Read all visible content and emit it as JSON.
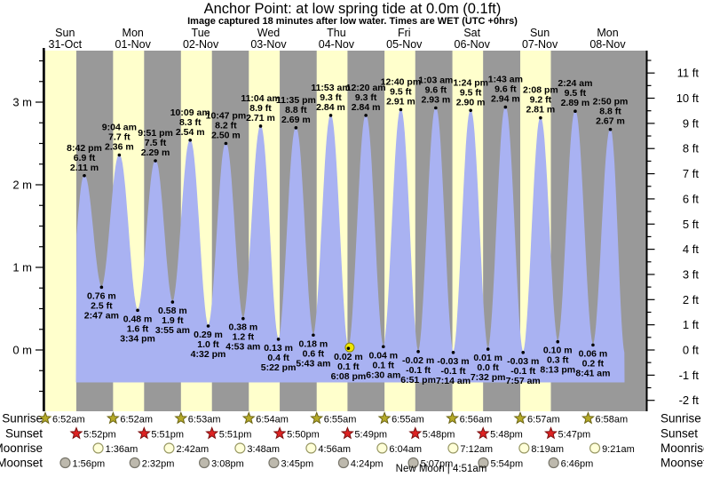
{
  "title": "Anchor Point: at low  spring tide at 0.0m (0.1ft)",
  "subtitle": "Image captured 18 minutes after low water. Times are WET (UTC +0hrs)",
  "colors": {
    "day_band": "#ffffcc",
    "night_band": "#999999",
    "tide_fill": "#a9b2f2",
    "day_label": "#d93a2b",
    "annotation_text": "#000000",
    "sunrise_star": "#b5aa28",
    "sunrise_star_outline": "#6b6414",
    "sunset_star": "#dd2222",
    "sunset_star_outline": "#7a1010",
    "moonrise_circle": "#ffffd8",
    "moonrise_circle_outline": "#999966",
    "moonset_circle": "#bdb9ad",
    "moonset_circle_outline": "#77756a",
    "current_marker": "#efe600",
    "current_marker_outline": "#8a8400"
  },
  "chart_data": {
    "type": "area",
    "title": "Anchor Point: at low  spring tide at 0.0m (0.1ft)",
    "subtitle": "Image captured 18 minutes after low water. Times are WET (UTC +0hrs)",
    "ylabel_left": "meters",
    "ylabel_right": "feet",
    "ylim_m": [
      -0.7,
      3.6
    ],
    "grid": false,
    "legend": false,
    "days": [
      {
        "weekday": "Sun",
        "date": "31-Oct"
      },
      {
        "weekday": "Mon",
        "date": "01-Nov"
      },
      {
        "weekday": "Tue",
        "date": "02-Nov"
      },
      {
        "weekday": "Wed",
        "date": "03-Nov"
      },
      {
        "weekday": "Thu",
        "date": "04-Nov"
      },
      {
        "weekday": "Fri",
        "date": "05-Nov"
      },
      {
        "weekday": "Sat",
        "date": "06-Nov"
      },
      {
        "weekday": "Sun",
        "date": "07-Nov"
      },
      {
        "weekday": "Mon",
        "date": "08-Nov"
      }
    ],
    "y_axis_left": {
      "ticks": [
        {
          "v": 0,
          "label": "0 m"
        },
        {
          "v": 1,
          "label": "1 m"
        },
        {
          "v": 2,
          "label": "2 m"
        },
        {
          "v": 3,
          "label": "3 m"
        }
      ]
    },
    "y_axis_right": {
      "ticks": [
        {
          "v": -2,
          "label": "-2 ft"
        },
        {
          "v": -1,
          "label": "-1 ft"
        },
        {
          "v": 0,
          "label": "0 ft"
        },
        {
          "v": 1,
          "label": "1 ft"
        },
        {
          "v": 2,
          "label": "2 ft"
        },
        {
          "v": 3,
          "label": "3 ft"
        },
        {
          "v": 4,
          "label": "4 ft"
        },
        {
          "v": 5,
          "label": "5 ft"
        },
        {
          "v": 6,
          "label": "6 ft"
        },
        {
          "v": 7,
          "label": "7 ft"
        },
        {
          "v": 8,
          "label": "8 ft"
        },
        {
          "v": 9,
          "label": "9 ft"
        },
        {
          "v": 10,
          "label": "10 ft"
        },
        {
          "v": 11,
          "label": "11 ft"
        }
      ]
    },
    "tide_events": [
      {
        "type": "high",
        "day": 0,
        "time": "8:42 pm",
        "ft": "6.9 ft",
        "m": "2.11 m"
      },
      {
        "type": "low",
        "day": 1,
        "time": "2:47 am",
        "ft": "2.5 ft",
        "m": "0.76 m"
      },
      {
        "type": "high",
        "day": 1,
        "time": "9:04 am",
        "ft": "7.7 ft",
        "m": "2.36 m"
      },
      {
        "type": "low",
        "day": 1,
        "time": "3:34 pm",
        "ft": "1.6 ft",
        "m": "0.48 m"
      },
      {
        "type": "high",
        "day": 1,
        "time": "9:51 pm",
        "ft": "7.5 ft",
        "m": "2.29 m"
      },
      {
        "type": "low",
        "day": 2,
        "time": "3:55 am",
        "ft": "1.9 ft",
        "m": "0.58 m"
      },
      {
        "type": "high",
        "day": 2,
        "time": "10:09 am",
        "ft": "8.3 ft",
        "m": "2.54 m"
      },
      {
        "type": "low",
        "day": 2,
        "time": "4:32 pm",
        "ft": "1.0 ft",
        "m": "0.29 m"
      },
      {
        "type": "high",
        "day": 2,
        "time": "10:47 pm",
        "ft": "8.2 ft",
        "m": "2.50 m"
      },
      {
        "type": "low",
        "day": 3,
        "time": "4:53 am",
        "ft": "1.2 ft",
        "m": "0.38 m"
      },
      {
        "type": "high",
        "day": 3,
        "time": "11:04 am",
        "ft": "8.9 ft",
        "m": "2.71 m"
      },
      {
        "type": "low",
        "day": 3,
        "time": "5:22 pm",
        "ft": "0.4 ft",
        "m": "0.13 m"
      },
      {
        "type": "high",
        "day": 3,
        "time": "11:35 pm",
        "ft": "8.8 ft",
        "m": "2.69 m"
      },
      {
        "type": "low",
        "day": 4,
        "time": "5:43 am",
        "ft": "0.6 ft",
        "m": "0.18 m"
      },
      {
        "type": "high",
        "day": 4,
        "time": "11:53 am",
        "ft": "9.3 ft",
        "m": "2.84 m"
      },
      {
        "type": "low",
        "day": 4,
        "time": "6:08 pm",
        "ft": "0.1 ft",
        "m": "0.02 m",
        "current": true
      },
      {
        "type": "high",
        "day": 5,
        "time": "12:20 am",
        "ft": "9.3 ft",
        "m": "2.84 m"
      },
      {
        "type": "low",
        "day": 5,
        "time": "6:30 am",
        "ft": "0.1 ft",
        "m": "0.04 m"
      },
      {
        "type": "high",
        "day": 5,
        "time": "12:40 pm",
        "ft": "9.5 ft",
        "m": "2.91 m"
      },
      {
        "type": "low",
        "day": 5,
        "time": "6:51 pm",
        "ft": "-0.1 ft",
        "m": "-0.02 m"
      },
      {
        "type": "high",
        "day": 6,
        "time": "1:03 am",
        "ft": "9.6 ft",
        "m": "2.93 m"
      },
      {
        "type": "low",
        "day": 6,
        "time": "7:14 am",
        "ft": "-0.1 ft",
        "m": "-0.03 m"
      },
      {
        "type": "high",
        "day": 6,
        "time": "1:24 pm",
        "ft": "9.5 ft",
        "m": "2.90 m"
      },
      {
        "type": "low",
        "day": 6,
        "time": "7:32 pm",
        "ft": "0.0 ft",
        "m": "0.01 m"
      },
      {
        "type": "high",
        "day": 7,
        "time": "1:43 am",
        "ft": "9.6 ft",
        "m": "2.94 m"
      },
      {
        "type": "low",
        "day": 7,
        "time": "7:57 am",
        "ft": "-0.1 ft",
        "m": "-0.03 m"
      },
      {
        "type": "high",
        "day": 7,
        "time": "2:08 pm",
        "ft": "9.2 ft",
        "m": "2.81 m"
      },
      {
        "type": "low",
        "day": 7,
        "time": "8:13 pm",
        "ft": "0.3 ft",
        "m": "0.10 m"
      },
      {
        "type": "high",
        "day": 8,
        "time": "2:24 am",
        "ft": "9.5 ft",
        "m": "2.89 m"
      },
      {
        "type": "low",
        "day": 8,
        "time": "8:41 am",
        "ft": "0.2 ft",
        "m": "0.06 m"
      },
      {
        "type": "high",
        "day": 8,
        "time": "2:50 pm",
        "ft": "8.8 ft",
        "m": "2.67 m"
      }
    ]
  },
  "astro": {
    "rows": [
      {
        "name": "Sunrise",
        "icon": "sunrise-star-icon",
        "entries": [
          {
            "day": 0,
            "time": "6:52am"
          },
          {
            "day": 1,
            "time": "6:52am"
          },
          {
            "day": 2,
            "time": "6:53am"
          },
          {
            "day": 3,
            "time": "6:54am"
          },
          {
            "day": 4,
            "time": "6:55am"
          },
          {
            "day": 5,
            "time": "6:55am"
          },
          {
            "day": 6,
            "time": "6:56am"
          },
          {
            "day": 7,
            "time": "6:57am"
          },
          {
            "day": 8,
            "time": "6:58am"
          }
        ]
      },
      {
        "name": "Sunset",
        "icon": "sunset-star-icon",
        "entries": [
          {
            "day": 0,
            "time": "5:52pm"
          },
          {
            "day": 1,
            "time": "5:51pm"
          },
          {
            "day": 2,
            "time": "5:51pm"
          },
          {
            "day": 3,
            "time": "5:50pm"
          },
          {
            "day": 4,
            "time": "5:49pm"
          },
          {
            "day": 5,
            "time": "5:48pm"
          },
          {
            "day": 6,
            "time": "5:48pm"
          },
          {
            "day": 7,
            "time": "5:47pm"
          }
        ]
      },
      {
        "name": "Moonrise",
        "icon": "moonrise-moon-icon",
        "entries": [
          {
            "day": 1,
            "time": "1:36am"
          },
          {
            "day": 2,
            "time": "2:42am"
          },
          {
            "day": 3,
            "time": "3:48am"
          },
          {
            "day": 4,
            "time": "4:56am"
          },
          {
            "day": 5,
            "time": "6:04am"
          },
          {
            "day": 6,
            "time": "7:12am"
          },
          {
            "day": 7,
            "time": "8:19am"
          },
          {
            "day": 8,
            "time": "9:21am"
          }
        ]
      },
      {
        "name": "Moonset",
        "icon": "moonset-moon-icon",
        "entries": [
          {
            "day": 0,
            "time": "1:56pm"
          },
          {
            "day": 1,
            "time": "2:32pm"
          },
          {
            "day": 2,
            "time": "3:08pm"
          },
          {
            "day": 3,
            "time": "3:45pm"
          },
          {
            "day": 4,
            "time": "4:24pm"
          },
          {
            "day": 5,
            "time": "5:07pm"
          },
          {
            "day": 6,
            "time": "5:54pm"
          },
          {
            "day": 7,
            "time": "6:46pm"
          }
        ]
      }
    ],
    "new_moon_label": "New Moon | 4:51am"
  }
}
